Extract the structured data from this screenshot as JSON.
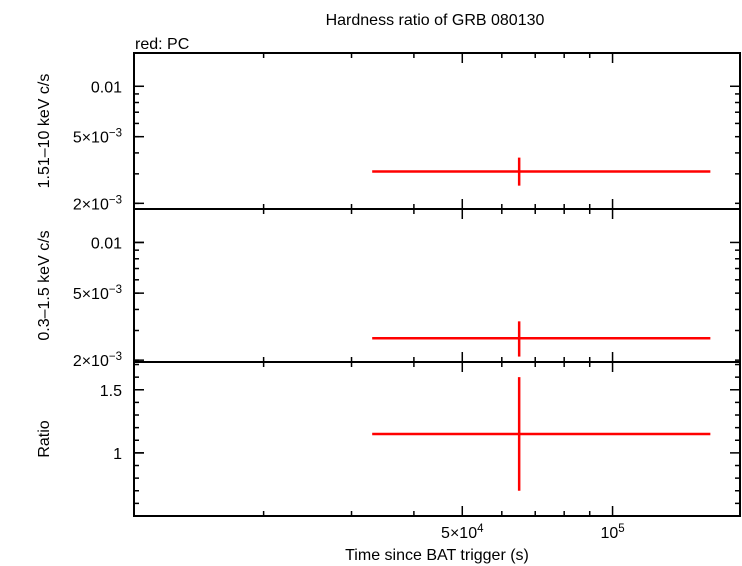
{
  "chart_data": {
    "type": "scatter",
    "title": "Hardness ratio of GRB 080130",
    "legend_note": "red: PC",
    "xlabel": "Time since BAT trigger (s)",
    "xscale": "log",
    "xlim": [
      11000,
      180000
    ],
    "xticks": [
      {
        "value": 50000,
        "base": "5×10",
        "exp": "4"
      },
      {
        "value": 100000,
        "base": "10",
        "exp": "5"
      }
    ],
    "series_color": "#ff0000",
    "panels": [
      {
        "id": "hard",
        "ylabel": "1.51–10 keV c/s",
        "yscale": "log",
        "ylim": [
          0.00185,
          0.0158
        ],
        "yticks": [
          {
            "value": 0.01,
            "label": "0.01"
          },
          {
            "value": 0.005,
            "base": "5×10",
            "exp": "−3"
          },
          {
            "value": 0.002,
            "base": "2×10",
            "exp": "−3"
          }
        ],
        "points": [
          {
            "x": 65000,
            "xlo": 33000,
            "xhi": 157000,
            "y": 0.0031,
            "ylo": 0.00255,
            "yhi": 0.00375
          }
        ]
      },
      {
        "id": "soft",
        "ylabel": "0.3–1.5 keV c/s",
        "yscale": "log",
        "ylim": [
          0.00195,
          0.0158
        ],
        "yticks": [
          {
            "value": 0.01,
            "label": "0.01"
          },
          {
            "value": 0.005,
            "base": "5×10",
            "exp": "−3"
          },
          {
            "value": 0.002,
            "base": "2×10",
            "exp": "−3"
          }
        ],
        "points": [
          {
            "x": 65000,
            "xlo": 33000,
            "xhi": 157000,
            "y": 0.0027,
            "ylo": 0.0021,
            "yhi": 0.0034
          }
        ]
      },
      {
        "id": "ratio",
        "ylabel": "Ratio",
        "yscale": "linear",
        "ylim": [
          0.5,
          1.72
        ],
        "yticks": [
          {
            "value": 1.5,
            "label": "1.5"
          },
          {
            "value": 1,
            "label": "1"
          }
        ],
        "points": [
          {
            "x": 65000,
            "xlo": 33000,
            "xhi": 157000,
            "y": 1.15,
            "ylo": 0.7,
            "yhi": 1.6
          }
        ]
      }
    ]
  }
}
